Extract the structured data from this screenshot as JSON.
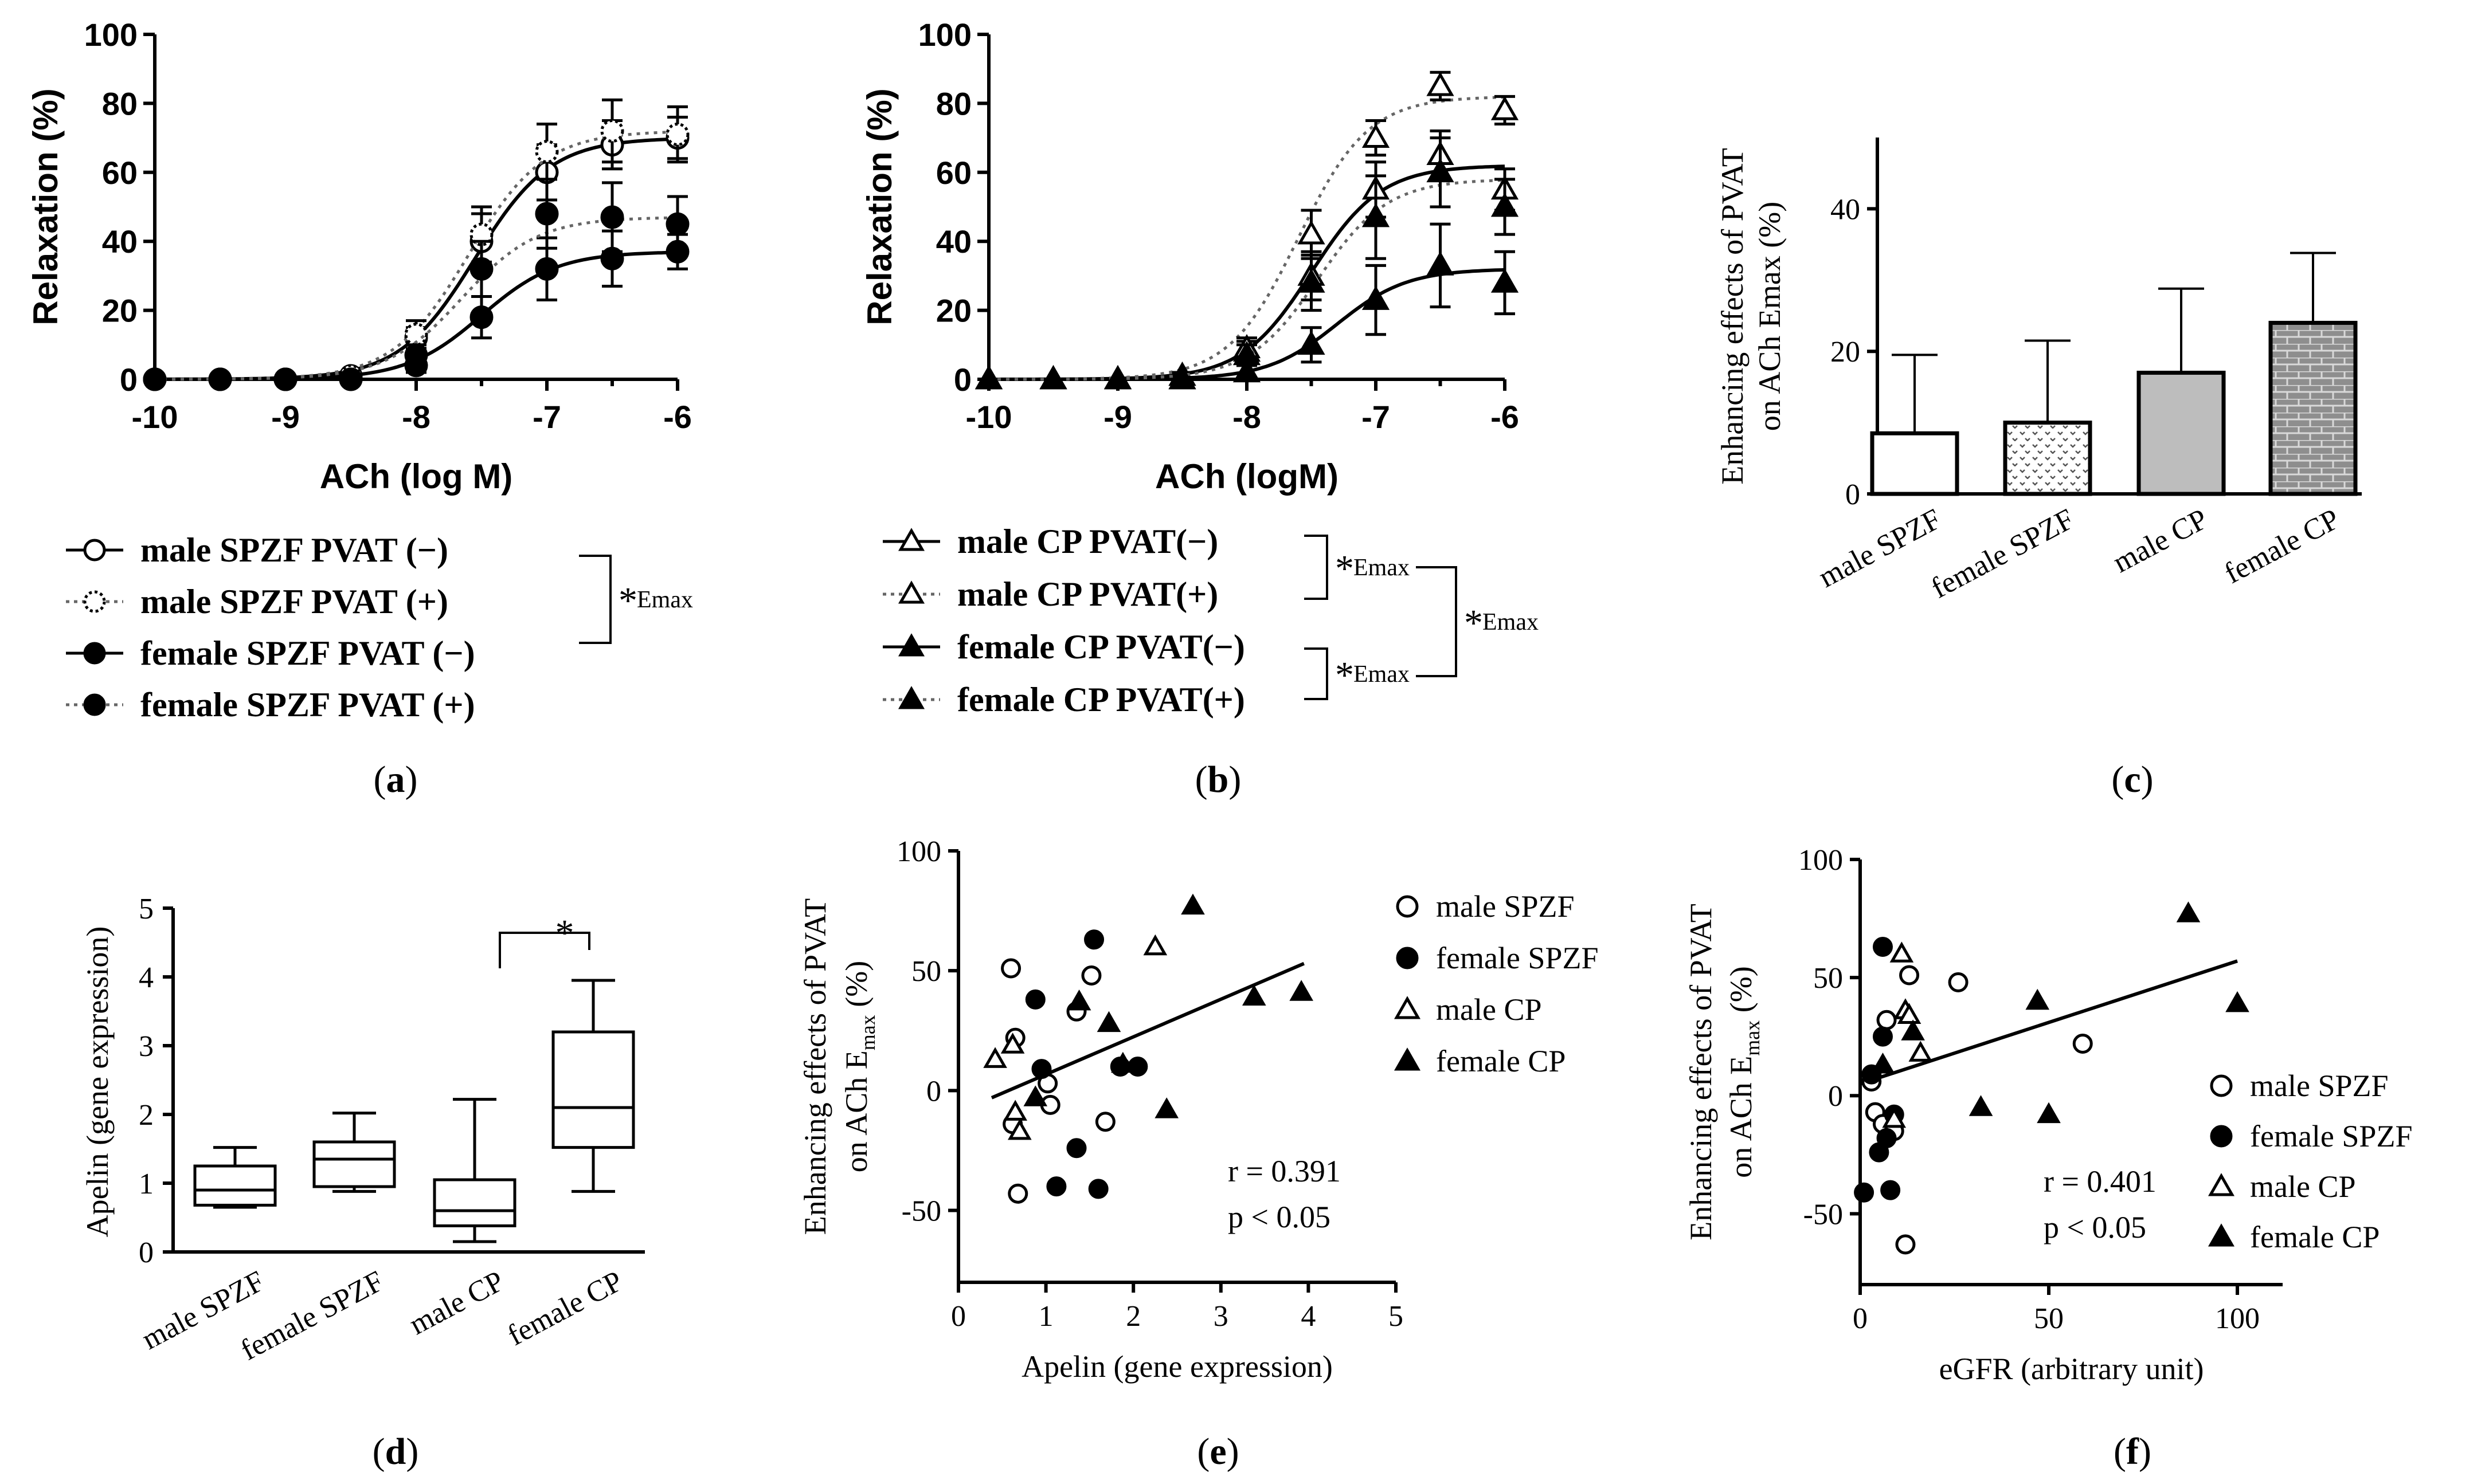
{
  "chart_data": [
    {
      "id": "a",
      "type": "line",
      "caption": "a",
      "xlabel": "ACh (log M)",
      "ylabel": "Relaxation (%)",
      "xlim": [
        -10,
        -6
      ],
      "ylim": [
        0,
        100
      ],
      "xticks": [
        "-10",
        "-9",
        "-8",
        "-7",
        "-6"
      ],
      "yticks": [
        "0",
        "20",
        "40",
        "60",
        "80",
        "100"
      ],
      "x": [
        -10,
        -9.5,
        -9,
        -8.5,
        -8,
        -7.5,
        -7,
        -6.5,
        -6
      ],
      "series": [
        {
          "name": "male  SPZF PVAT (−)",
          "marker": "open-circle",
          "dash": "solid",
          "values": [
            0,
            0,
            0,
            1,
            12,
            40,
            60,
            68,
            70
          ],
          "err": [
            0,
            0,
            0,
            1,
            3,
            8,
            8,
            7,
            6
          ],
          "fit": {
            "top": 70,
            "ec50": -7.55,
            "hill": 1.5
          }
        },
        {
          "name": "male  SPZF PVAT (+)",
          "marker": "open-circle-dotted",
          "dash": "dotted",
          "values": [
            0,
            0,
            0,
            1,
            13,
            42,
            66,
            72,
            71
          ],
          "err": [
            0,
            0,
            0,
            1,
            4,
            8,
            8,
            9,
            8
          ],
          "fit": {
            "top": 72,
            "ec50": -7.6,
            "hill": 1.5
          }
        },
        {
          "name": "female SPZF PVAT (−)",
          "marker": "filled-circle",
          "dash": "solid",
          "values": [
            0,
            0,
            0,
            0,
            4,
            18,
            32,
            35,
            37
          ],
          "err": [
            0,
            0,
            0,
            0,
            2,
            6,
            9,
            8,
            5
          ],
          "fit": {
            "top": 37,
            "ec50": -7.5,
            "hill": 1.5
          }
        },
        {
          "name": "female SPZF PVAT (+)",
          "marker": "filled-circle",
          "dash": "dotted",
          "values": [
            0,
            0,
            0,
            0,
            7,
            32,
            48,
            47,
            45
          ],
          "err": [
            0,
            0,
            0,
            0,
            3,
            8,
            10,
            10,
            8
          ],
          "fit": {
            "top": 47,
            "ec50": -7.65,
            "hill": 1.5
          }
        }
      ],
      "bracket_label": "Emax"
    },
    {
      "id": "b",
      "type": "line",
      "caption": "b",
      "xlabel": "ACh (logM)",
      "ylabel": "Relaxation (%)",
      "xlim": [
        -10,
        -6
      ],
      "ylim": [
        0,
        100
      ],
      "xticks": [
        "-10",
        "-9",
        "-8",
        "-7",
        "-6"
      ],
      "yticks": [
        "0",
        "20",
        "40",
        "60",
        "80",
        "100"
      ],
      "x": [
        -10,
        -9.5,
        -9,
        -8.5,
        -8,
        -7.5,
        -7,
        -6.5,
        -6
      ],
      "series": [
        {
          "name": "male  CP PVAT(−)",
          "marker": "open-triangle",
          "dash": "solid",
          "values": [
            0,
            0,
            0,
            1,
            8,
            30,
            55,
            65,
            55
          ],
          "err": [
            0,
            0,
            0,
            1,
            3,
            7,
            8,
            7,
            6
          ],
          "fit": {
            "top": 62,
            "ec50": -7.5,
            "hill": 1.6
          }
        },
        {
          "name": "male  CP PVAT(+)",
          "marker": "open-triangle",
          "dash": "dotted",
          "values": [
            0,
            0,
            0,
            1,
            9,
            42,
            70,
            85,
            78
          ],
          "err": [
            0,
            0,
            0,
            1,
            3,
            7,
            5,
            4,
            4
          ],
          "fit": {
            "top": 82,
            "ec50": -7.6,
            "hill": 1.6
          }
        },
        {
          "name": "female CP PVAT(−)",
          "marker": "filled-triangle",
          "dash": "solid",
          "values": [
            0,
            0,
            0,
            0,
            2,
            10,
            23,
            33,
            28
          ],
          "err": [
            0,
            0,
            0,
            0,
            2,
            5,
            10,
            12,
            9
          ],
          "fit": {
            "top": 32,
            "ec50": -7.3,
            "hill": 1.6
          }
        },
        {
          "name": "female CP PVAT(+)",
          "marker": "filled-triangle",
          "dash": "dotted",
          "values": [
            0,
            0,
            0,
            0,
            7,
            28,
            47,
            60,
            50
          ],
          "err": [
            0,
            0,
            0,
            0,
            3,
            8,
            12,
            10,
            8
          ],
          "fit": {
            "top": 58,
            "ec50": -7.45,
            "hill": 1.6
          }
        }
      ],
      "bracket_label": "Emax"
    },
    {
      "id": "c",
      "type": "bar",
      "caption": "c",
      "ylabel_line1": "Enhancing effects of PVAT",
      "ylabel_line2": "on ACh Emax (%)",
      "ylim": [
        0,
        50
      ],
      "yticks": [
        "0",
        "20",
        "40"
      ],
      "categories": [
        "male SPZF",
        "female SPZF",
        "male CP",
        "female CP"
      ],
      "values": [
        8.5,
        10,
        17,
        24
      ],
      "err": [
        11,
        11.5,
        11.8,
        9.8
      ],
      "fills": [
        "#ffffff",
        "dots",
        "#bdbdbd",
        "bricks"
      ]
    },
    {
      "id": "d",
      "type": "box",
      "caption": "d",
      "ylabel": "Apelin (gene expression)",
      "ylim": [
        0,
        5
      ],
      "yticks": [
        "0",
        "1",
        "2",
        "3",
        "4",
        "5"
      ],
      "categories": [
        "male SPZF",
        "female SPZF",
        "male CP",
        "female CP"
      ],
      "boxes": [
        {
          "min": 0.65,
          "q1": 0.68,
          "median": 0.9,
          "q3": 1.25,
          "max": 1.52
        },
        {
          "min": 0.88,
          "q1": 0.95,
          "median": 1.35,
          "q3": 1.6,
          "max": 2.02
        },
        {
          "min": 0.15,
          "q1": 0.38,
          "median": 0.6,
          "q3": 1.05,
          "max": 2.22
        },
        {
          "min": 0.88,
          "q1": 1.52,
          "median": 2.1,
          "q3": 3.2,
          "max": 3.95
        }
      ],
      "significance": "*"
    },
    {
      "id": "e",
      "type": "scatter",
      "caption": "e",
      "xlabel": "Apelin (gene expression)",
      "ylabel_line1": "Enhancing effects of PVAT",
      "ylabel_line2_prefix": "on ACh E",
      "ylabel_sub": "max",
      "ylabel_suffix": " (%)",
      "xlim": [
        0,
        5
      ],
      "ylim": [
        -80,
        100
      ],
      "xticks": [
        "0",
        "1",
        "2",
        "3",
        "4",
        "5"
      ],
      "yticks": [
        "-50",
        "0",
        "50",
        "100"
      ],
      "groups": [
        {
          "name": "male SPZF",
          "marker": "open-circle",
          "points": [
            [
              0.6,
              51
            ],
            [
              0.65,
              22
            ],
            [
              0.62,
              -14
            ],
            [
              0.68,
              -43
            ],
            [
              1.02,
              3
            ],
            [
              1.05,
              -6
            ],
            [
              1.35,
              33
            ],
            [
              1.52,
              48
            ],
            [
              1.68,
              -13
            ]
          ]
        },
        {
          "name": "female SPZF",
          "marker": "filled-circle",
          "points": [
            [
              0.88,
              38
            ],
            [
              0.95,
              9
            ],
            [
              1.12,
              -40
            ],
            [
              1.35,
              -24
            ],
            [
              1.55,
              63
            ],
            [
              1.6,
              -41
            ],
            [
              1.85,
              10
            ],
            [
              2.05,
              10
            ]
          ]
        },
        {
          "name": "male CP",
          "marker": "open-triangle",
          "points": [
            [
              0.42,
              13
            ],
            [
              0.62,
              19
            ],
            [
              0.65,
              -9
            ],
            [
              0.7,
              -17
            ],
            [
              2.25,
              60
            ]
          ]
        },
        {
          "name": "female CP",
          "marker": "filled-triangle",
          "points": [
            [
              0.88,
              -3
            ],
            [
              1.38,
              37
            ],
            [
              1.72,
              28
            ],
            [
              1.88,
              11
            ],
            [
              2.38,
              -8
            ],
            [
              2.68,
              77
            ],
            [
              3.38,
              39
            ],
            [
              3.92,
              41
            ]
          ]
        }
      ],
      "fit_line": {
        "x": [
          0.38,
          3.95
        ],
        "y": [
          -3,
          53
        ]
      },
      "stats": {
        "r": "r = 0.391",
        "p": "p < 0.05"
      }
    },
    {
      "id": "f",
      "type": "scatter",
      "caption": "f",
      "xlabel": "eGFR (arbitrary unit)",
      "ylabel_line1": "Enhancing effects of PVAT",
      "ylabel_line2_prefix": "on ACh E",
      "ylabel_sub": "max",
      "ylabel_suffix": " (%)",
      "xlim": [
        0,
        112
      ],
      "ylim": [
        -80,
        100
      ],
      "xticks": [
        "0",
        "50",
        "100"
      ],
      "yticks": [
        "-50",
        "0",
        "50",
        "100"
      ],
      "groups": [
        {
          "name": "male SPZF",
          "marker": "open-circle",
          "points": [
            [
              3,
              6
            ],
            [
              4,
              -7
            ],
            [
              6,
              -12
            ],
            [
              7,
              32
            ],
            [
              9,
              -15
            ],
            [
              12,
              -63
            ],
            [
              13,
              51
            ],
            [
              26,
              48
            ],
            [
              59,
              22
            ]
          ]
        },
        {
          "name": "female SPZF",
          "marker": "filled-circle",
          "points": [
            [
              1,
              -41
            ],
            [
              3,
              9
            ],
            [
              5,
              -24
            ],
            [
              6,
              63
            ],
            [
              6,
              25
            ],
            [
              7,
              -18
            ],
            [
              8,
              -40
            ],
            [
              9,
              -8
            ]
          ]
        },
        {
          "name": "male CP",
          "marker": "open-triangle",
          "points": [
            [
              9,
              -10
            ],
            [
              11,
              60
            ],
            [
              12,
              36
            ],
            [
              13,
              34
            ],
            [
              16,
              18
            ]
          ]
        },
        {
          "name": "female CP",
          "marker": "filled-triangle",
          "points": [
            [
              6,
              13
            ],
            [
              14,
              27
            ],
            [
              32,
              -5
            ],
            [
              47,
              40
            ],
            [
              50,
              -8
            ],
            [
              87,
              77
            ],
            [
              100,
              39
            ]
          ]
        }
      ],
      "fit_line": {
        "x": [
          0,
          100
        ],
        "y": [
          5,
          57
        ]
      },
      "stats": {
        "r": "r = 0.401",
        "p": "p < 0.05"
      }
    }
  ]
}
